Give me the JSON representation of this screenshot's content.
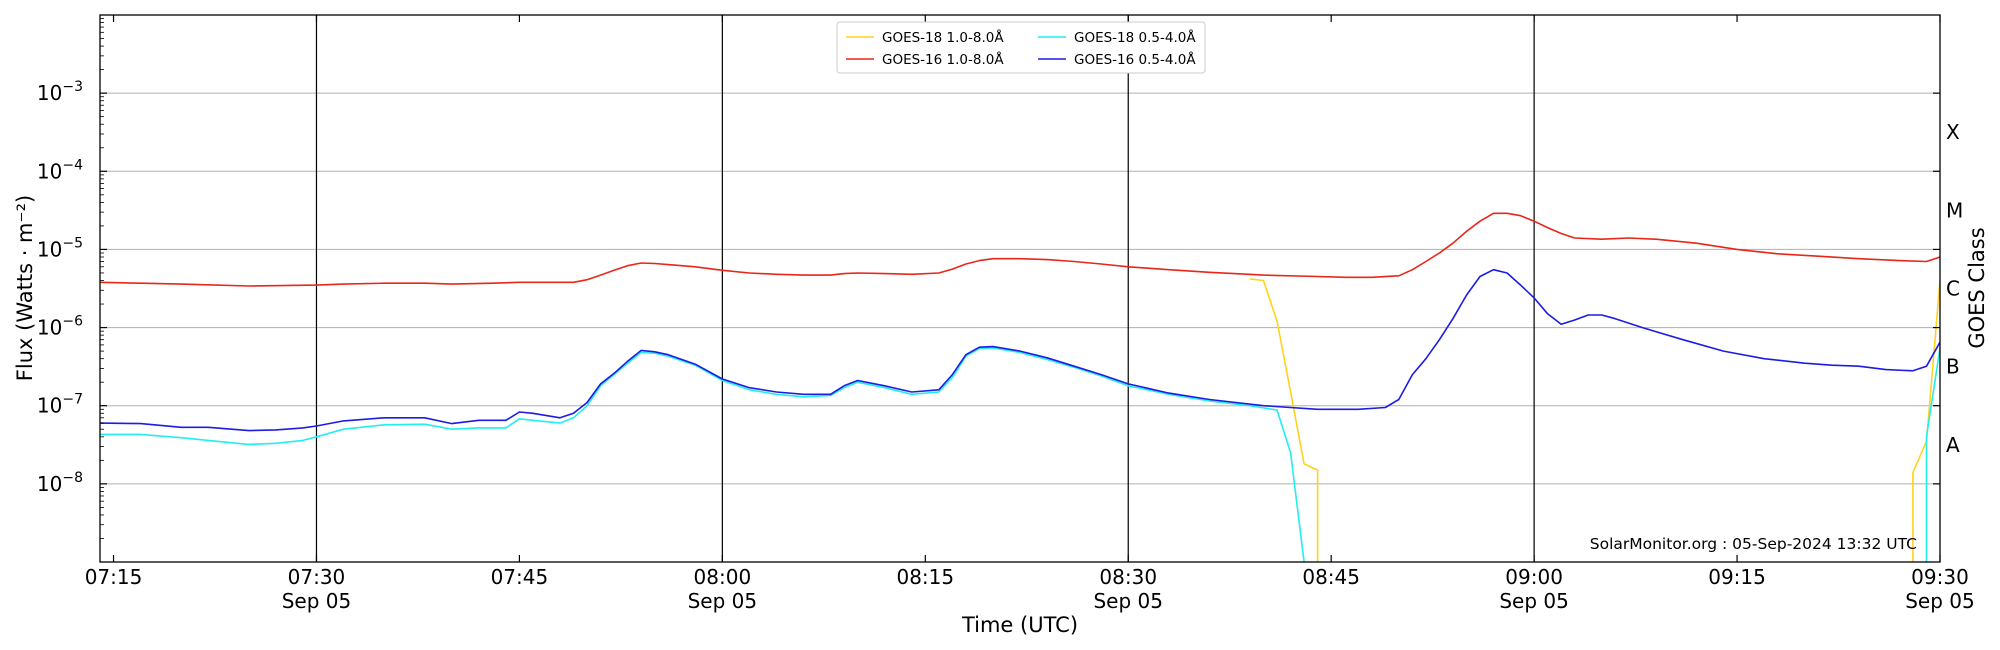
{
  "chart_data": {
    "type": "line",
    "xlabel": "Time (UTC)",
    "ylabel": "Flux (Watts · m⁻²)",
    "right_label": "GOES Class",
    "y_scale": "log",
    "x_range": [
      "07:14",
      "09:30"
    ],
    "ylim": [
      1e-09,
      0.01
    ],
    "grid": "horizontal at decades",
    "legend_placement": "top-center",
    "annotation": "SolarMonitor.org : 05-Sep-2024 13:32 UTC",
    "x_ticks": [
      {
        "time": "07:15",
        "label": "07:15",
        "date": ""
      },
      {
        "time": "07:30",
        "label": "07:30",
        "date": "Sep 05"
      },
      {
        "time": "07:45",
        "label": "07:45",
        "date": ""
      },
      {
        "time": "08:00",
        "label": "08:00",
        "date": "Sep 05"
      },
      {
        "time": "08:15",
        "label": "08:15",
        "date": ""
      },
      {
        "time": "08:30",
        "label": "08:30",
        "date": "Sep 05"
      },
      {
        "time": "08:45",
        "label": "08:45",
        "date": ""
      },
      {
        "time": "09:00",
        "label": "09:00",
        "date": "Sep 05"
      },
      {
        "time": "09:15",
        "label": "09:15",
        "date": ""
      },
      {
        "time": "09:30",
        "label": "09:30",
        "date": "Sep 05"
      }
    ],
    "vertical_lines": [
      "07:30",
      "08:00",
      "08:30",
      "09:00"
    ],
    "y_ticks": [
      {
        "value": 1e-08,
        "base": "10",
        "exp": "−8"
      },
      {
        "value": 1e-07,
        "base": "10",
        "exp": "−7"
      },
      {
        "value": 1e-06,
        "base": "10",
        "exp": "−6"
      },
      {
        "value": 1e-05,
        "base": "10",
        "exp": "−5"
      },
      {
        "value": 0.0001,
        "base": "10",
        "exp": "−4"
      },
      {
        "value": 0.001,
        "base": "10",
        "exp": "−3"
      }
    ],
    "classes": [
      {
        "label": "A",
        "value": 1e-08
      },
      {
        "label": "B",
        "value": 1e-07
      },
      {
        "label": "C",
        "value": 1e-06
      },
      {
        "label": "M",
        "value": 1e-05
      },
      {
        "label": "X",
        "value": 0.0001
      }
    ],
    "series": [
      {
        "name": "GOES-18 1.0-8.0Å",
        "color": "#ffd21f",
        "points": [
          [
            "08:39",
            4.2e-06
          ],
          [
            "08:40",
            4e-06
          ],
          [
            "08:41",
            1.2e-06
          ],
          [
            "08:42",
            1.5e-07
          ],
          [
            "08:43",
            1.8e-08
          ],
          [
            "08:44",
            1.5e-08
          ],
          [
            "08:44",
            1e-09
          ]
        ]
      },
      {
        "name": "GOES-18 1.0-8.0Å",
        "color": "#ffd21f",
        "points": [
          [
            "09:28",
            1e-09
          ],
          [
            "09:28",
            1.4e-08
          ],
          [
            "09:29",
            3.5e-08
          ],
          [
            "09:30",
            4e-06
          ]
        ]
      },
      {
        "name": "GOES-16 1.0-8.0Å",
        "color": "#e8261a",
        "points": [
          [
            "07:14",
            3.8e-06
          ],
          [
            "07:17",
            3.7e-06
          ],
          [
            "07:20",
            3.6e-06
          ],
          [
            "07:25",
            3.4e-06
          ],
          [
            "07:30",
            3.5e-06
          ],
          [
            "07:32",
            3.6e-06
          ],
          [
            "07:35",
            3.7e-06
          ],
          [
            "07:38",
            3.7e-06
          ],
          [
            "07:40",
            3.6e-06
          ],
          [
            "07:43",
            3.7e-06
          ],
          [
            "07:45",
            3.8e-06
          ],
          [
            "07:47",
            3.8e-06
          ],
          [
            "07:49",
            3.8e-06
          ],
          [
            "07:50",
            4.1e-06
          ],
          [
            "07:51",
            4.7e-06
          ],
          [
            "07:52",
            5.4e-06
          ],
          [
            "07:53",
            6.2e-06
          ],
          [
            "07:54",
            6.7e-06
          ],
          [
            "07:55",
            6.6e-06
          ],
          [
            "07:56",
            6.4e-06
          ],
          [
            "07:58",
            6e-06
          ],
          [
            "08:00",
            5.4e-06
          ],
          [
            "08:02",
            5e-06
          ],
          [
            "08:04",
            4.8e-06
          ],
          [
            "08:06",
            4.7e-06
          ],
          [
            "08:08",
            4.7e-06
          ],
          [
            "08:09",
            4.9e-06
          ],
          [
            "08:10",
            5e-06
          ],
          [
            "08:12",
            4.9e-06
          ],
          [
            "08:14",
            4.8e-06
          ],
          [
            "08:16",
            5e-06
          ],
          [
            "08:17",
            5.6e-06
          ],
          [
            "08:18",
            6.5e-06
          ],
          [
            "08:19",
            7.2e-06
          ],
          [
            "08:20",
            7.6e-06
          ],
          [
            "08:22",
            7.6e-06
          ],
          [
            "08:24",
            7.4e-06
          ],
          [
            "08:26",
            7e-06
          ],
          [
            "08:28",
            6.5e-06
          ],
          [
            "08:30",
            6e-06
          ],
          [
            "08:33",
            5.5e-06
          ],
          [
            "08:36",
            5.1e-06
          ],
          [
            "08:40",
            4.7e-06
          ],
          [
            "08:44",
            4.5e-06
          ],
          [
            "08:46",
            4.4e-06
          ],
          [
            "08:48",
            4.4e-06
          ],
          [
            "08:50",
            4.6e-06
          ],
          [
            "08:51",
            5.5e-06
          ],
          [
            "08:52",
            7e-06
          ],
          [
            "08:53",
            9e-06
          ],
          [
            "08:54",
            1.2e-05
          ],
          [
            "08:55",
            1.7e-05
          ],
          [
            "08:56",
            2.3e-05
          ],
          [
            "08:57",
            2.9e-05
          ],
          [
            "08:58",
            2.9e-05
          ],
          [
            "08:59",
            2.7e-05
          ],
          [
            "09:00",
            2.3e-05
          ],
          [
            "09:01",
            1.9e-05
          ],
          [
            "09:02",
            1.6e-05
          ],
          [
            "09:03",
            1.4e-05
          ],
          [
            "09:05",
            1.35e-05
          ],
          [
            "09:07",
            1.4e-05
          ],
          [
            "09:09",
            1.35e-05
          ],
          [
            "09:12",
            1.2e-05
          ],
          [
            "09:15",
            1e-05
          ],
          [
            "09:18",
            8.8e-06
          ],
          [
            "09:21",
            8.2e-06
          ],
          [
            "09:24",
            7.6e-06
          ],
          [
            "09:27",
            7.2e-06
          ],
          [
            "09:29",
            7e-06
          ],
          [
            "09:30",
            8e-06
          ]
        ]
      },
      {
        "name": "GOES-18 0.5-4.0Å",
        "color": "#22eef0",
        "points": [
          [
            "07:14",
            4.3e-08
          ],
          [
            "07:17",
            4.3e-08
          ],
          [
            "07:20",
            3.9e-08
          ],
          [
            "07:22",
            3.6e-08
          ],
          [
            "07:25",
            3.2e-08
          ],
          [
            "07:27",
            3.3e-08
          ],
          [
            "07:29",
            3.6e-08
          ],
          [
            "07:30",
            4e-08
          ],
          [
            "07:32",
            5e-08
          ],
          [
            "07:35",
            5.7e-08
          ],
          [
            "07:38",
            5.8e-08
          ],
          [
            "07:40",
            5e-08
          ],
          [
            "07:42",
            5.2e-08
          ],
          [
            "07:44",
            5.2e-08
          ],
          [
            "07:45",
            6.8e-08
          ],
          [
            "07:46",
            6.5e-08
          ],
          [
            "07:48",
            6e-08
          ],
          [
            "07:49",
            7e-08
          ],
          [
            "07:50",
            1e-07
          ],
          [
            "07:51",
            1.8e-07
          ],
          [
            "07:52",
            2.5e-07
          ],
          [
            "07:53",
            3.5e-07
          ],
          [
            "07:54",
            4.8e-07
          ],
          [
            "07:55",
            4.7e-07
          ],
          [
            "07:56",
            4.3e-07
          ],
          [
            "07:58",
            3.3e-07
          ],
          [
            "08:00",
            2.1e-07
          ],
          [
            "08:02",
            1.6e-07
          ],
          [
            "08:04",
            1.4e-07
          ],
          [
            "08:06",
            1.3e-07
          ],
          [
            "08:08",
            1.35e-07
          ],
          [
            "08:09",
            1.7e-07
          ],
          [
            "08:10",
            2e-07
          ],
          [
            "08:12",
            1.7e-07
          ],
          [
            "08:14",
            1.4e-07
          ],
          [
            "08:16",
            1.5e-07
          ],
          [
            "08:17",
            2.3e-07
          ],
          [
            "08:18",
            4.3e-07
          ],
          [
            "08:19",
            5.4e-07
          ],
          [
            "08:20",
            5.5e-07
          ],
          [
            "08:22",
            4.8e-07
          ],
          [
            "08:24",
            3.9e-07
          ],
          [
            "08:26",
            3.1e-07
          ],
          [
            "08:28",
            2.4e-07
          ],
          [
            "08:30",
            1.8e-07
          ],
          [
            "08:33",
            1.4e-07
          ],
          [
            "08:36",
            1.15e-07
          ],
          [
            "08:39",
            1e-07
          ],
          [
            "08:41",
            8.8e-08
          ],
          [
            "08:42",
            2.5e-08
          ],
          [
            "08:43",
            1e-09
          ]
        ]
      },
      {
        "name": "GOES-18 0.5-4.0Å",
        "color": "#22eef0",
        "points": [
          [
            "09:29",
            1e-09
          ],
          [
            "09:29",
            4e-08
          ],
          [
            "09:30",
            5.5e-07
          ]
        ]
      },
      {
        "name": "GOES-16 0.5-4.0Å",
        "color": "#1c1ce6",
        "points": [
          [
            "07:14",
            6e-08
          ],
          [
            "07:17",
            5.9e-08
          ],
          [
            "07:20",
            5.3e-08
          ],
          [
            "07:22",
            5.3e-08
          ],
          [
            "07:25",
            4.8e-08
          ],
          [
            "07:27",
            4.9e-08
          ],
          [
            "07:29",
            5.2e-08
          ],
          [
            "07:30",
            5.5e-08
          ],
          [
            "07:32",
            6.4e-08
          ],
          [
            "07:35",
            7e-08
          ],
          [
            "07:38",
            7e-08
          ],
          [
            "07:40",
            5.9e-08
          ],
          [
            "07:42",
            6.5e-08
          ],
          [
            "07:44",
            6.5e-08
          ],
          [
            "07:45",
            8.3e-08
          ],
          [
            "07:46",
            8e-08
          ],
          [
            "07:48",
            7e-08
          ],
          [
            "07:49",
            8e-08
          ],
          [
            "07:50",
            1.1e-07
          ],
          [
            "07:51",
            1.9e-07
          ],
          [
            "07:52",
            2.6e-07
          ],
          [
            "07:53",
            3.7e-07
          ],
          [
            "07:54",
            5.1e-07
          ],
          [
            "07:55",
            4.9e-07
          ],
          [
            "07:56",
            4.5e-07
          ],
          [
            "07:58",
            3.4e-07
          ],
          [
            "08:00",
            2.2e-07
          ],
          [
            "08:02",
            1.7e-07
          ],
          [
            "08:04",
            1.5e-07
          ],
          [
            "08:06",
            1.4e-07
          ],
          [
            "08:08",
            1.4e-07
          ],
          [
            "08:09",
            1.8e-07
          ],
          [
            "08:10",
            2.1e-07
          ],
          [
            "08:12",
            1.8e-07
          ],
          [
            "08:14",
            1.5e-07
          ],
          [
            "08:16",
            1.6e-07
          ],
          [
            "08:17",
            2.5e-07
          ],
          [
            "08:18",
            4.5e-07
          ],
          [
            "08:19",
            5.6e-07
          ],
          [
            "08:20",
            5.7e-07
          ],
          [
            "08:22",
            5e-07
          ],
          [
            "08:24",
            4.1e-07
          ],
          [
            "08:26",
            3.2e-07
          ],
          [
            "08:28",
            2.5e-07
          ],
          [
            "08:30",
            1.9e-07
          ],
          [
            "08:33",
            1.45e-07
          ],
          [
            "08:36",
            1.2e-07
          ],
          [
            "08:40",
            1e-07
          ],
          [
            "08:44",
            9e-08
          ],
          [
            "08:47",
            9e-08
          ],
          [
            "08:49",
            9.5e-08
          ],
          [
            "08:50",
            1.2e-07
          ],
          [
            "08:51",
            2.5e-07
          ],
          [
            "08:52",
            4e-07
          ],
          [
            "08:53",
            7e-07
          ],
          [
            "08:54",
            1.3e-06
          ],
          [
            "08:55",
            2.6e-06
          ],
          [
            "08:56",
            4.5e-06
          ],
          [
            "08:57",
            5.5e-06
          ],
          [
            "08:58",
            5e-06
          ],
          [
            "08:59",
            3.5e-06
          ],
          [
            "09:00",
            2.4e-06
          ],
          [
            "09:01",
            1.5e-06
          ],
          [
            "09:02",
            1.1e-06
          ],
          [
            "09:03",
            1.25e-06
          ],
          [
            "09:04",
            1.45e-06
          ],
          [
            "09:05",
            1.45e-06
          ],
          [
            "09:06",
            1.3e-06
          ],
          [
            "09:08",
            1e-06
          ],
          [
            "09:11",
            7e-07
          ],
          [
            "09:14",
            5e-07
          ],
          [
            "09:17",
            4e-07
          ],
          [
            "09:20",
            3.5e-07
          ],
          [
            "09:22",
            3.3e-07
          ],
          [
            "09:24",
            3.2e-07
          ],
          [
            "09:26",
            2.9e-07
          ],
          [
            "09:28",
            2.8e-07
          ],
          [
            "09:29",
            3.2e-07
          ],
          [
            "09:30",
            6.5e-07
          ]
        ]
      }
    ],
    "legend": [
      {
        "label": "GOES-18 1.0-8.0Å",
        "color": "#ffd21f"
      },
      {
        "label": "GOES-16 1.0-8.0Å",
        "color": "#e8261a"
      },
      {
        "label": "GOES-18 0.5-4.0Å",
        "color": "#22eef0"
      },
      {
        "label": "GOES-16 0.5-4.0Å",
        "color": "#1c1ce6"
      }
    ]
  }
}
